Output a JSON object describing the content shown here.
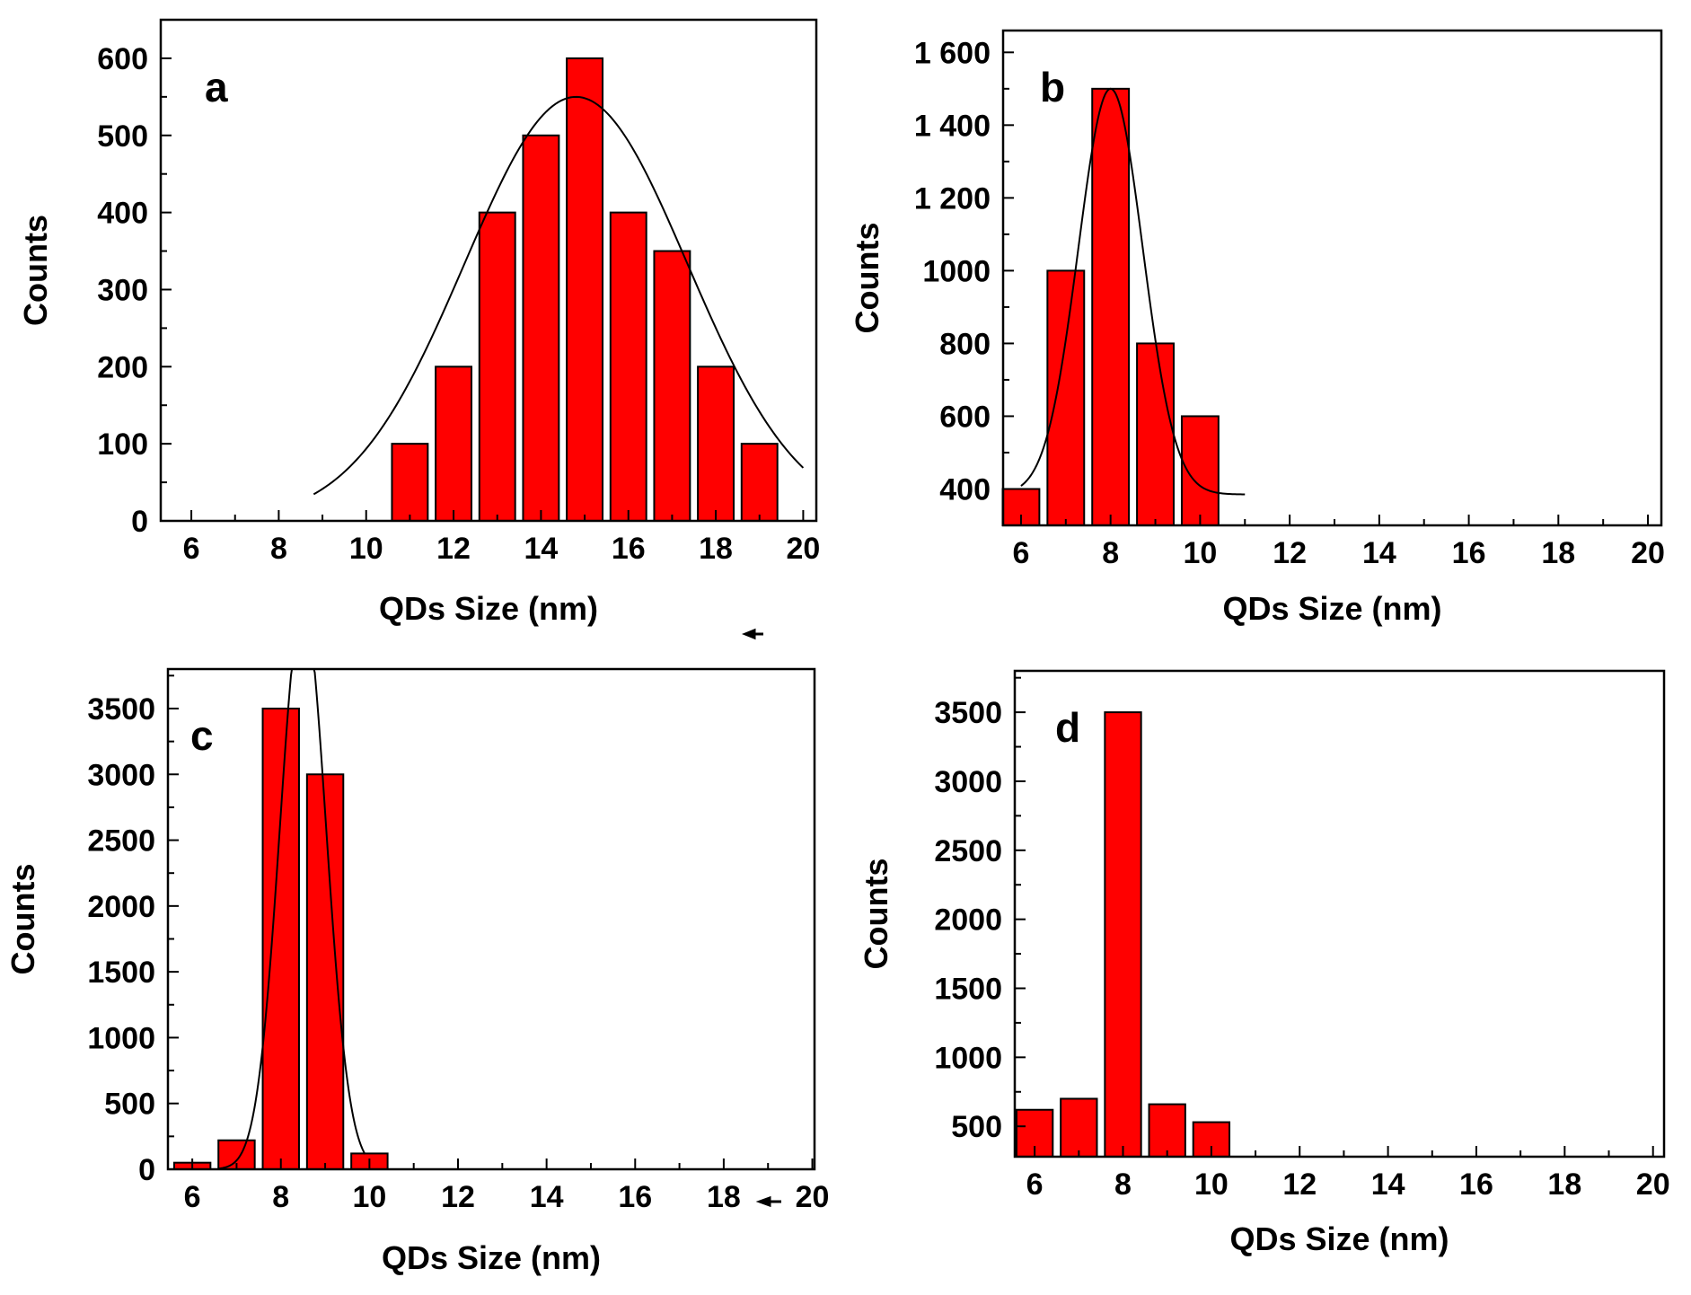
{
  "colors": {
    "bar_fill": "#ff0000",
    "bar_stroke": "#000000",
    "curve": "#000000",
    "frame": "#000000"
  },
  "chart_data": [
    {
      "panel": "a",
      "type": "bar",
      "xlabel": "QDs Size (nm)",
      "ylabel": "Counts",
      "xlim": [
        5.3,
        20.3
      ],
      "ylim": [
        0,
        650
      ],
      "xticks": [
        6,
        8,
        10,
        12,
        14,
        16,
        18,
        20
      ],
      "yticks": [
        0,
        100,
        200,
        300,
        400,
        500,
        600
      ],
      "bar_width": 0.82,
      "x": [
        11,
        12,
        13,
        14,
        15,
        16,
        17,
        18,
        19
      ],
      "values": [
        100,
        200,
        400,
        500,
        600,
        400,
        350,
        200,
        100
      ],
      "fit_curve": {
        "type": "gaussian",
        "center": 14.8,
        "sigma": 2.55,
        "amplitude": 550,
        "baseline": 0,
        "x_range": [
          8.8,
          20
        ]
      }
    },
    {
      "panel": "b",
      "type": "bar",
      "xlabel": "QDs Size (nm)",
      "ylabel": "Counts",
      "xlim": [
        5.6,
        20.3
      ],
      "ylim": [
        300,
        1660
      ],
      "xticks": [
        6,
        8,
        10,
        12,
        14,
        16,
        18,
        20
      ],
      "yticks": [
        400,
        600,
        800,
        1000,
        1200,
        1400,
        1600
      ],
      "ytick_labels": [
        "400",
        "600",
        "800",
        "1000",
        "1 200",
        "1 400",
        "1 600"
      ],
      "bar_width": 0.82,
      "x": [
        6,
        7,
        8,
        9,
        10
      ],
      "values": [
        400,
        1000,
        1500,
        800,
        600
      ],
      "fit_curve": {
        "type": "gaussian",
        "center": 8.0,
        "sigma": 0.72,
        "amplitude": 1115,
        "baseline": 385,
        "x_range": [
          6.0,
          11.0
        ]
      }
    },
    {
      "panel": "c",
      "type": "bar",
      "xlabel": "QDs Size (nm)",
      "ylabel": "Counts",
      "xlim": [
        5.45,
        20.05
      ],
      "ylim": [
        0,
        3800
      ],
      "xticks": [
        6,
        8,
        10,
        12,
        14,
        16,
        18,
        20
      ],
      "yticks": [
        0,
        500,
        1000,
        1500,
        2000,
        2500,
        3000,
        3500
      ],
      "bar_width": 0.82,
      "x": [
        6,
        7,
        8,
        9,
        10
      ],
      "values": [
        50,
        220,
        3500,
        3000,
        120
      ],
      "fit_curve": {
        "type": "gaussian",
        "center": 8.5,
        "sigma": 0.52,
        "amplitude": 4300,
        "baseline": 0,
        "x_range": [
          6.6,
          9.9
        ]
      }
    },
    {
      "panel": "d",
      "type": "bar",
      "xlabel": "QDs Size (nm)",
      "ylabel": "Counts",
      "xlim": [
        5.55,
        20.25
      ],
      "ylim": [
        280,
        3800
      ],
      "xticks": [
        6,
        8,
        10,
        12,
        14,
        16,
        18,
        20
      ],
      "yticks": [
        500,
        1000,
        1500,
        2000,
        2500,
        3000,
        3500
      ],
      "bar_width": 0.82,
      "x": [
        6,
        7,
        8,
        9,
        10
      ],
      "values": [
        620,
        700,
        3500,
        660,
        530
      ]
    }
  ]
}
